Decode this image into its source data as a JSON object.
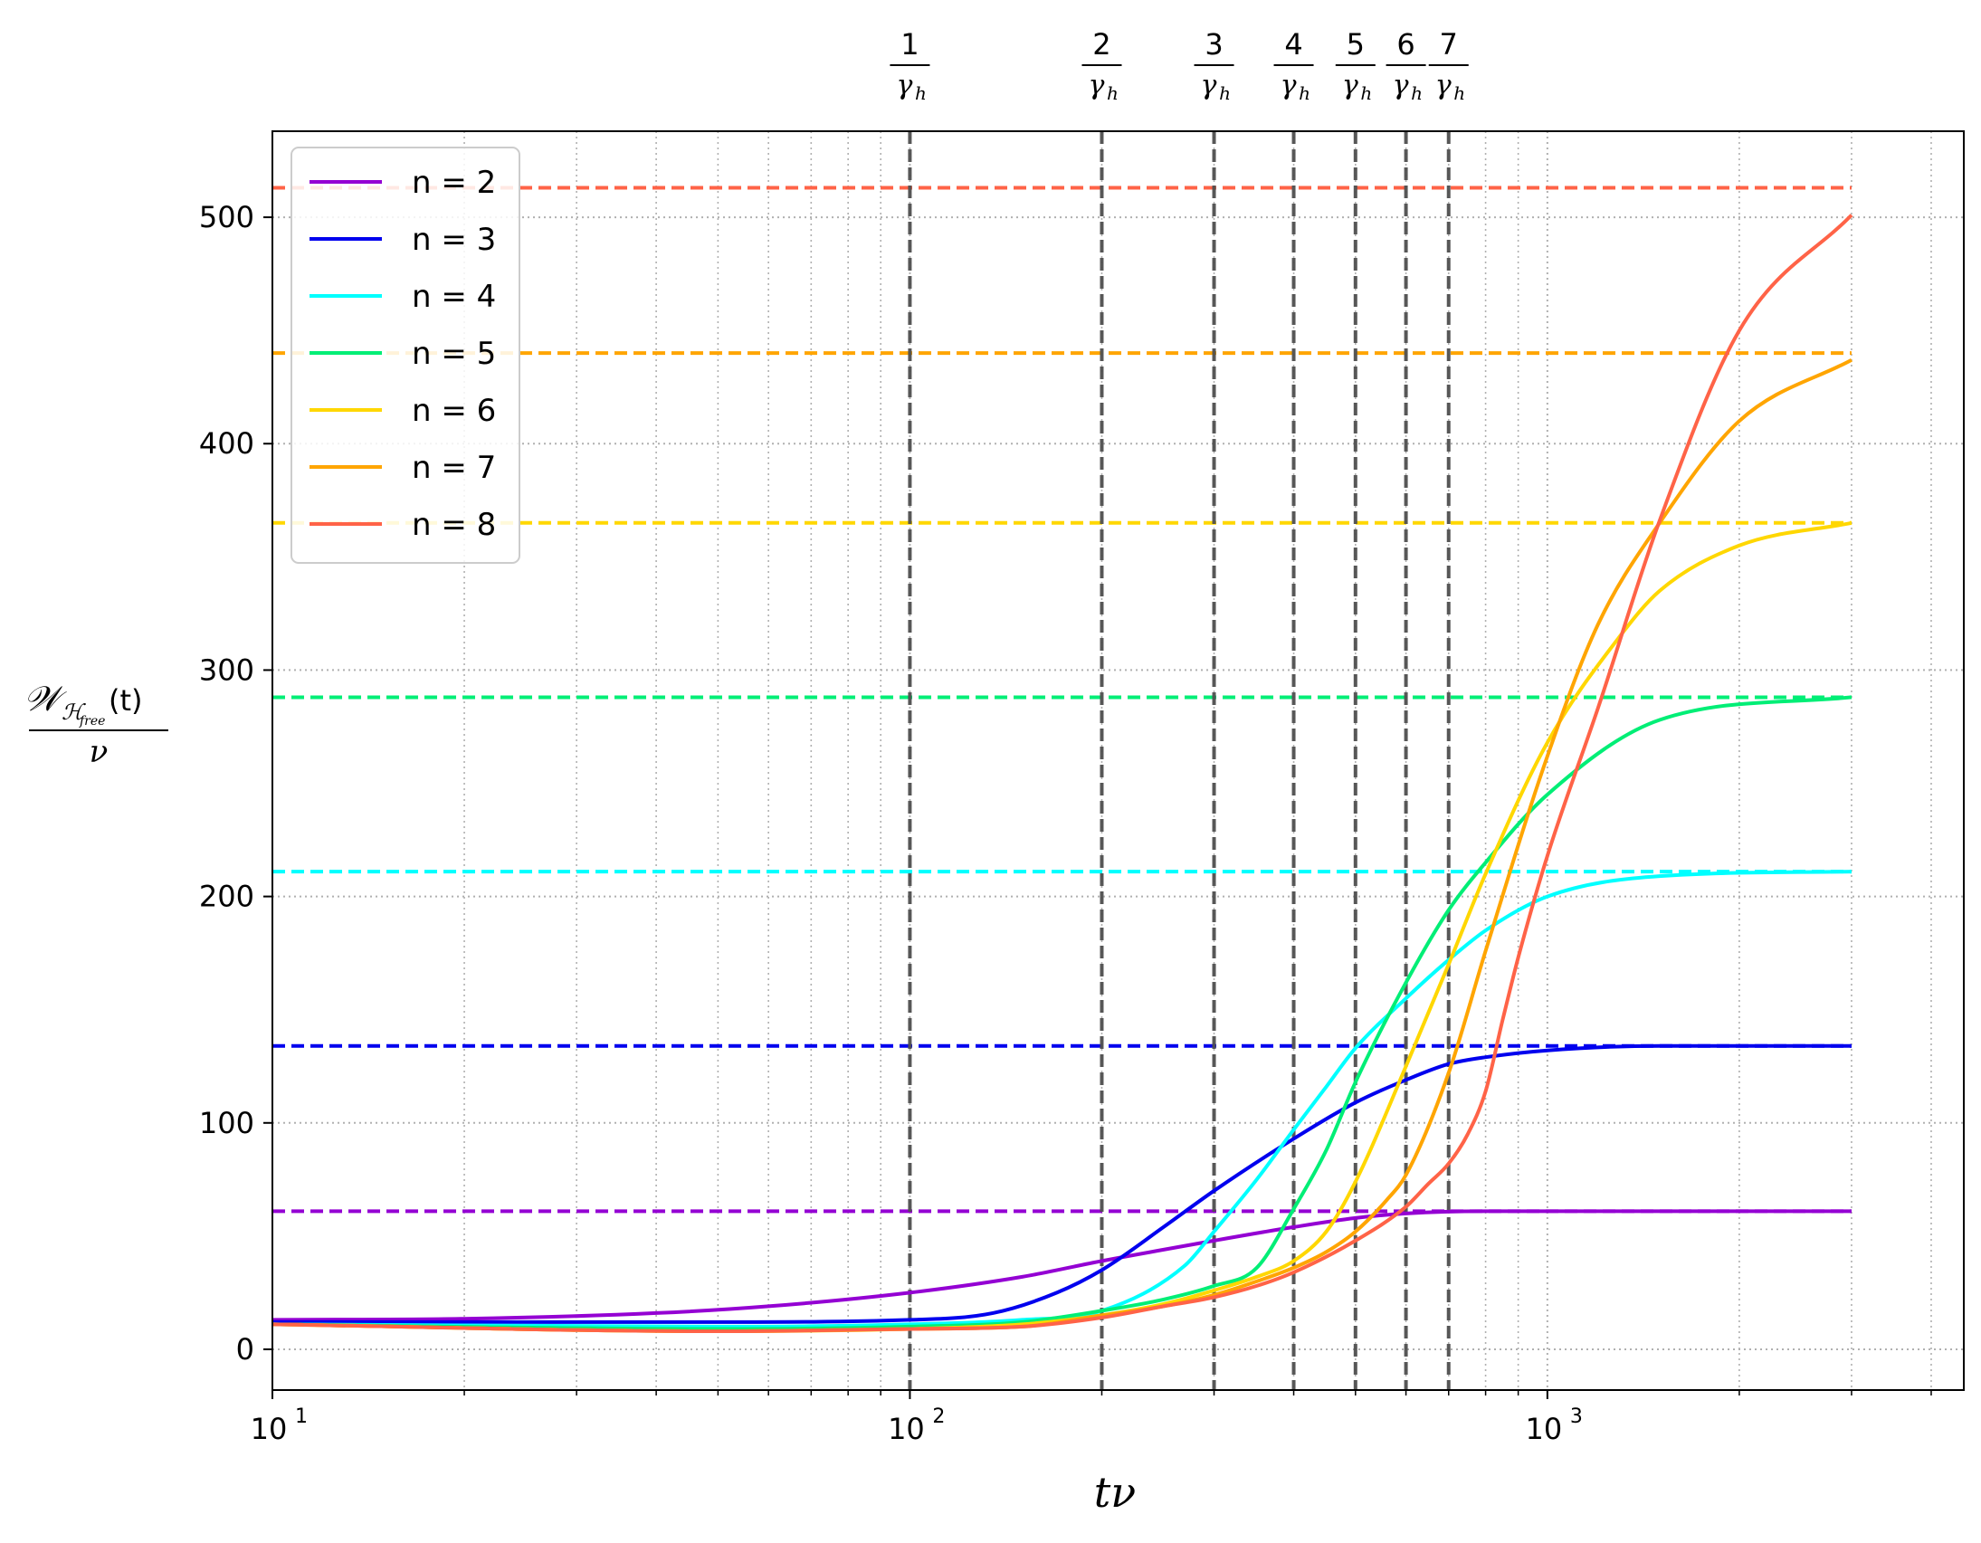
{
  "chart_data": {
    "type": "line",
    "title": "",
    "xlabel": "tν",
    "ylabel": {
      "numerator_main": "𝒲",
      "numerator_sub": "ℋ",
      "numerator_subsub": "free",
      "numerator_tail": "(t)",
      "denominator": "ν"
    },
    "xscale": "log",
    "xlim": [
      10,
      4500
    ],
    "ylim": [
      -18,
      538
    ],
    "grid": true,
    "legend_position": "top-left",
    "x_ticks": [
      {
        "base": "10",
        "exp": "1",
        "value": 10
      },
      {
        "base": "10",
        "exp": "2",
        "value": 100
      },
      {
        "base": "10",
        "exp": "3",
        "value": 1000
      }
    ],
    "y_ticks": [
      {
        "label": "0",
        "value": 0
      },
      {
        "label": "100",
        "value": 100
      },
      {
        "label": "200",
        "value": 200
      },
      {
        "label": "300",
        "value": 300
      },
      {
        "label": "400",
        "value": 400
      },
      {
        "label": "500",
        "value": 500
      }
    ],
    "vlines": [
      {
        "x": 100,
        "num": "1",
        "den": "γ",
        "den_sub": "h"
      },
      {
        "x": 200,
        "num": "2",
        "den": "γ",
        "den_sub": "h"
      },
      {
        "x": 300,
        "num": "3",
        "den": "γ",
        "den_sub": "h"
      },
      {
        "x": 400,
        "num": "4",
        "den": "γ",
        "den_sub": "h"
      },
      {
        "x": 500,
        "num": "5",
        "den": "γ",
        "den_sub": "h"
      },
      {
        "x": 600,
        "num": "6",
        "den": "γ",
        "den_sub": "h"
      },
      {
        "x": 700,
        "num": "7",
        "den": "γ",
        "den_sub": "h"
      }
    ],
    "series": [
      {
        "name": "n = 2",
        "color": "#9400D3",
        "asymptote": 61,
        "points": [
          [
            10,
            13
          ],
          [
            20,
            13.5
          ],
          [
            40,
            16
          ],
          [
            60,
            19
          ],
          [
            100,
            25
          ],
          [
            150,
            32
          ],
          [
            200,
            39
          ],
          [
            250,
            44
          ],
          [
            300,
            48
          ],
          [
            400,
            54
          ],
          [
            500,
            58
          ],
          [
            600,
            60
          ],
          [
            800,
            61
          ],
          [
            1000,
            61
          ],
          [
            3000,
            61
          ]
        ]
      },
      {
        "name": "n = 3",
        "color": "#0000EE",
        "asymptote": 134,
        "points": [
          [
            10,
            12
          ],
          [
            50,
            12
          ],
          [
            100,
            13
          ],
          [
            135,
            16
          ],
          [
            170,
            25
          ],
          [
            200,
            35
          ],
          [
            250,
            54
          ],
          [
            300,
            70
          ],
          [
            400,
            93
          ],
          [
            500,
            109
          ],
          [
            600,
            119
          ],
          [
            700,
            126
          ],
          [
            800,
            129
          ],
          [
            1000,
            132
          ],
          [
            1500,
            134
          ],
          [
            3000,
            134
          ]
        ]
      },
      {
        "name": "n = 4",
        "color": "#00FFFF",
        "asymptote": 211,
        "points": [
          [
            10,
            11
          ],
          [
            50,
            10
          ],
          [
            100,
            11
          ],
          [
            150,
            13
          ],
          [
            200,
            17
          ],
          [
            270,
            37
          ],
          [
            300,
            52
          ],
          [
            350,
            75
          ],
          [
            400,
            97
          ],
          [
            450,
            116
          ],
          [
            500,
            133
          ],
          [
            600,
            155
          ],
          [
            700,
            172
          ],
          [
            800,
            185
          ],
          [
            1000,
            200
          ],
          [
            1500,
            209
          ],
          [
            3000,
            211
          ]
        ]
      },
      {
        "name": "n = 5",
        "color": "#00EE76",
        "asymptote": 288,
        "points": [
          [
            10,
            11
          ],
          [
            50,
            9
          ],
          [
            100,
            10
          ],
          [
            150,
            12
          ],
          [
            200,
            17
          ],
          [
            250,
            22
          ],
          [
            300,
            28
          ],
          [
            350,
            36
          ],
          [
            400,
            62
          ],
          [
            450,
            88
          ],
          [
            500,
            118
          ],
          [
            600,
            162
          ],
          [
            700,
            194
          ],
          [
            800,
            215
          ],
          [
            1000,
            245
          ],
          [
            1500,
            278
          ],
          [
            3000,
            288
          ]
        ]
      },
      {
        "name": "n = 6",
        "color": "#FFD700",
        "asymptote": 365,
        "points": [
          [
            10,
            11
          ],
          [
            50,
            8
          ],
          [
            100,
            9
          ],
          [
            150,
            11
          ],
          [
            200,
            15
          ],
          [
            250,
            20
          ],
          [
            300,
            26
          ],
          [
            350,
            32
          ],
          [
            400,
            39
          ],
          [
            450,
            52
          ],
          [
            500,
            74
          ],
          [
            600,
            125
          ],
          [
            700,
            170
          ],
          [
            800,
            210
          ],
          [
            1000,
            268
          ],
          [
            1300,
            315
          ],
          [
            1500,
            335
          ],
          [
            2000,
            355
          ],
          [
            3000,
            365
          ]
        ]
      },
      {
        "name": "n = 7",
        "color": "#FFA500",
        "asymptote": 440,
        "points": [
          [
            10,
            11
          ],
          [
            50,
            8
          ],
          [
            100,
            9
          ],
          [
            150,
            10
          ],
          [
            200,
            15
          ],
          [
            250,
            19
          ],
          [
            300,
            24
          ],
          [
            350,
            30
          ],
          [
            400,
            36
          ],
          [
            450,
            43
          ],
          [
            500,
            52
          ],
          [
            560,
            66
          ],
          [
            600,
            77
          ],
          [
            700,
            122
          ],
          [
            800,
            176
          ],
          [
            1000,
            262
          ],
          [
            1200,
            320
          ],
          [
            1500,
            365
          ],
          [
            2000,
            410
          ],
          [
            3000,
            437
          ]
        ]
      },
      {
        "name": "n = 8",
        "color": "#FF6347",
        "asymptote": 513,
        "points": [
          [
            10,
            11
          ],
          [
            50,
            8
          ],
          [
            100,
            9
          ],
          [
            150,
            10
          ],
          [
            200,
            14
          ],
          [
            250,
            19
          ],
          [
            300,
            23
          ],
          [
            350,
            28
          ],
          [
            400,
            34
          ],
          [
            500,
            48
          ],
          [
            600,
            63
          ],
          [
            650,
            73
          ],
          [
            700,
            82
          ],
          [
            750,
            95
          ],
          [
            800,
            114
          ],
          [
            850,
            145
          ],
          [
            900,
            173
          ],
          [
            1000,
            218
          ],
          [
            1200,
            283
          ],
          [
            1500,
            366
          ],
          [
            2000,
            450
          ],
          [
            3000,
            501
          ]
        ]
      }
    ]
  }
}
